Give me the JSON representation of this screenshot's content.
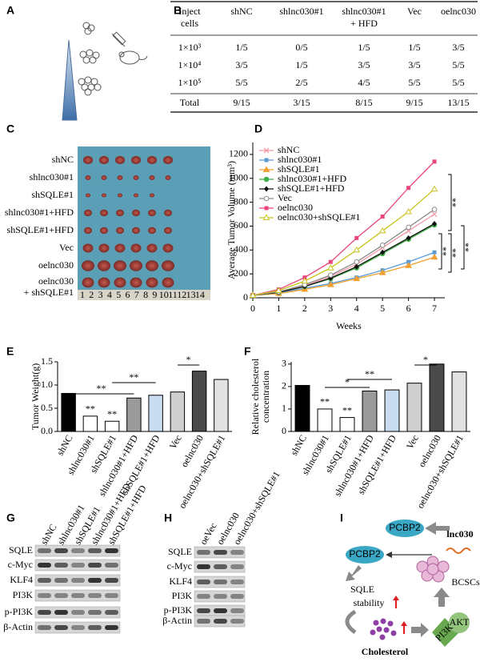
{
  "panel_labels": [
    "A",
    "B",
    "C",
    "D",
    "E",
    "F",
    "G",
    "H",
    "I"
  ],
  "table": {
    "header": [
      [
        "Inject",
        "cells"
      ],
      [
        "shNC"
      ],
      [
        "shlnc030#1"
      ],
      [
        "shlnc030#1",
        "+ HFD"
      ],
      [
        "Vec"
      ],
      [
        "oelnc030"
      ]
    ],
    "rows": [
      [
        "1×10³",
        "1/5",
        "0/5",
        "1/5",
        "1/5",
        "3/5"
      ],
      [
        "1×10⁴",
        "3/5",
        "1/5",
        "3/5",
        "3/5",
        "5/5"
      ],
      [
        "1×10⁵",
        "5/5",
        "2/5",
        "4/5",
        "5/5",
        "5/5"
      ],
      [
        "Total",
        "9/15",
        "3/15",
        "8/15",
        "9/15",
        "13/15"
      ]
    ]
  },
  "photo": {
    "row_labels": [
      [
        "shNC"
      ],
      [
        "shlnc030#1"
      ],
      [
        "shSQLE#1"
      ],
      [
        "shlnc030#1+HFD"
      ],
      [
        "shSQLE#1+HFD"
      ],
      [
        "Vec"
      ],
      [
        "oelnc030"
      ],
      [
        "oelnc030",
        "+ shSQLE#1"
      ]
    ],
    "ruler": [
      "1",
      "2",
      "3",
      "4",
      "5",
      "6",
      "7",
      "8",
      "9",
      "10",
      "11",
      "12",
      "13",
      "14"
    ]
  },
  "chart_data": [
    {
      "type": "line",
      "xlabel": "Weeks",
      "ylabel": "Average Tumor Volume (mm³)",
      "x": [
        0,
        1,
        2,
        3,
        4,
        5,
        6,
        7
      ],
      "xlim": [
        0,
        7.4
      ],
      "xticks": [
        0,
        1,
        2,
        3,
        4,
        5,
        6,
        7
      ],
      "ylim": [
        0,
        1300
      ],
      "yticks": [
        0,
        200,
        400,
        600,
        800,
        1000,
        1200
      ],
      "legend": "upper left",
      "series": [
        {
          "name": "shNC",
          "color": "#f29aa8",
          "marker": "x",
          "values": [
            20,
            50,
            100,
            180,
            280,
            420,
            560,
            700
          ]
        },
        {
          "name": "shlnc030#1",
          "color": "#5b9bd5",
          "marker": "square",
          "values": [
            20,
            40,
            80,
            120,
            170,
            230,
            300,
            380
          ]
        },
        {
          "name": "shSQLE#1",
          "color": "#f0a030",
          "marker": "triangle",
          "values": [
            20,
            35,
            70,
            110,
            160,
            210,
            270,
            340
          ]
        },
        {
          "name": "shlnc030#1+HFD",
          "color": "#3fae49",
          "marker": "circle",
          "values": [
            20,
            45,
            95,
            160,
            250,
            370,
            490,
            610
          ]
        },
        {
          "name": "shSQLE#1+HFD",
          "color": "#111111",
          "marker": "diamond",
          "values": [
            20,
            45,
            95,
            165,
            260,
            380,
            500,
            620
          ]
        },
        {
          "name": "Vec",
          "color": "#8c8c8c",
          "marker": "open-circle",
          "values": [
            20,
            50,
            110,
            190,
            300,
            440,
            590,
            740
          ]
        },
        {
          "name": "oelnc030",
          "color": "#e8457a",
          "marker": "square",
          "values": [
            20,
            70,
            170,
            300,
            500,
            680,
            920,
            1140
          ]
        },
        {
          "name": "oelnc030+shSQLE#1",
          "color": "#c9c41e",
          "marker": "open-triangle",
          "values": [
            20,
            60,
            140,
            250,
            400,
            560,
            720,
            910
          ]
        }
      ],
      "annotations": [
        "**",
        "**",
        "**",
        "**"
      ]
    },
    {
      "type": "bar",
      "ylabel": "Tumor Weight(g)",
      "categories": [
        "shNC",
        "shlnc030#1",
        "shSQLE#1",
        "shlnc030#1+HFD",
        "shSQLE#1+HFD",
        "Vec",
        "oelnc030",
        "oelnc030+shSQLE#1"
      ],
      "values": [
        0.82,
        0.33,
        0.22,
        0.72,
        0.78,
        0.85,
        1.3,
        1.12
      ],
      "colors": [
        "#000000",
        "#ffffff",
        "#ffffff",
        "#9a9a9a",
        "#c9dcf0",
        "#cfcfcf",
        "#4a4a4a",
        "#e2e2e2"
      ],
      "ylim": [
        0,
        1.5
      ],
      "yticks": [
        {
          "value": 0,
          "label": "0.0"
        },
        0.5,
        {
          "value": 1,
          "label": "1.0"
        },
        1.5
      ],
      "annotations": [
        "**",
        "**",
        "**",
        "**",
        "*"
      ]
    },
    {
      "type": "bar",
      "ylabel": [
        "Relative cholesterol",
        "concentration"
      ],
      "categories": [
        "shNC",
        "shlnc030#1",
        "shSQLE#1",
        "shlnc030#1+HFD",
        "shSQLE#1+HFD",
        "Vec",
        "oelnc030",
        "oelnc030+shSQLE#1"
      ],
      "values": [
        2.05,
        1.0,
        0.62,
        1.8,
        1.85,
        2.15,
        3.0,
        2.65
      ],
      "colors": [
        "#000000",
        "#ffffff",
        "#ffffff",
        "#9a9a9a",
        "#c9dcf0",
        "#cfcfcf",
        "#4a4a4a",
        "#e2e2e2"
      ],
      "ylim": [
        0,
        3.1
      ],
      "yticks": [
        0,
        1,
        2,
        3
      ],
      "annotations": [
        "**",
        "**",
        "*",
        "**",
        "*"
      ]
    }
  ],
  "blot_g": {
    "columns": [
      "shNC",
      "shlnc030#1",
      "shSQLE#1",
      "shlnc030#1+HFD",
      "shSQLE#1+HFD"
    ],
    "rows": [
      "SQLE",
      "c-Myc",
      "KLF4",
      "PI3K",
      "p-PI3K",
      "β-Actin"
    ]
  },
  "blot_h": {
    "columns": [
      "oeVec",
      "oelnc030",
      "oelnc030+shSQLE#1"
    ],
    "rows": [
      "SQLE",
      "c-Myc",
      "KLF4",
      "PI3K",
      "p-PI3K",
      "β-Actin"
    ]
  },
  "diagram": {
    "pcbp2_top": "PCBP2",
    "pcbp2_bottom": "PCBP2",
    "lnc": "lnc030",
    "sqle": "SQLE",
    "stability": "stability",
    "bcscs": "BCSCs",
    "cholesterol": "Cholesterol",
    "pi3k": "PI3K",
    "akt": "AKT"
  }
}
